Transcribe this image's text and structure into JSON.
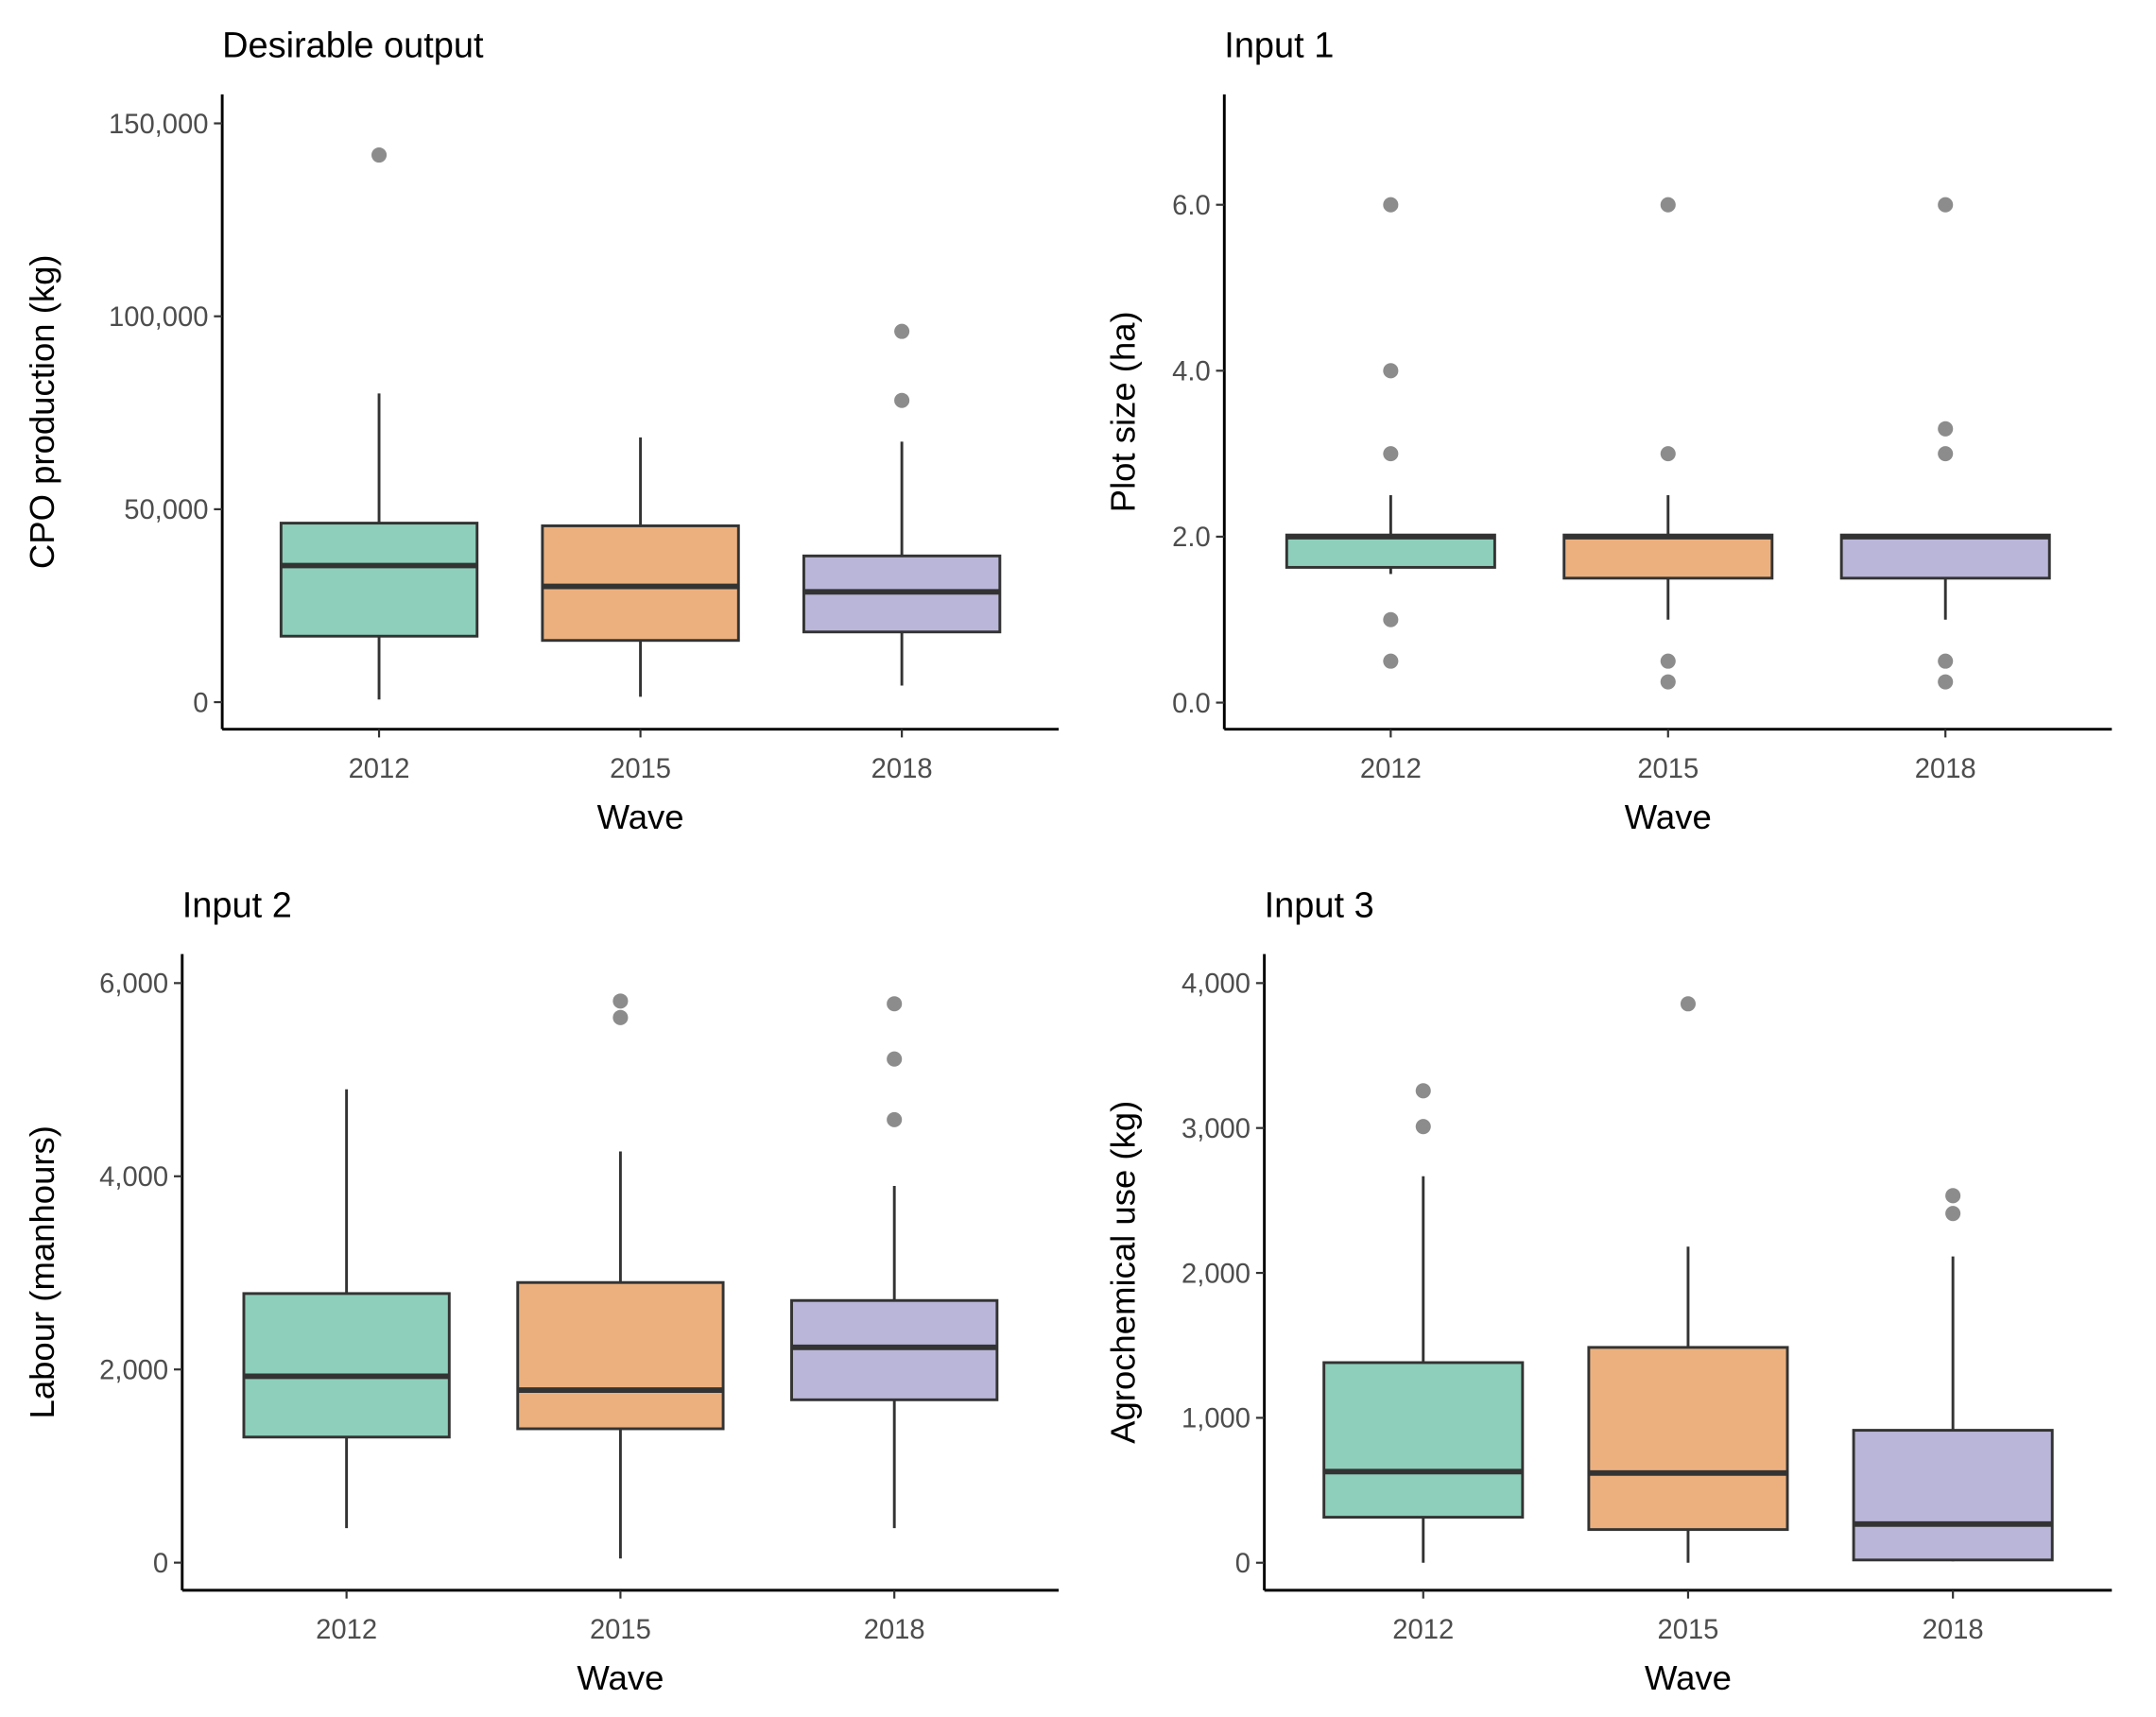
{
  "chart_data": [
    {
      "type": "box",
      "title": "Desirable output",
      "x_label": "Wave",
      "y_label": "CPO production (kg)",
      "categories": [
        "2012",
        "2015",
        "2018"
      ],
      "colors": [
        "#8dcfba",
        "#ecb07e",
        "#bab6d9"
      ],
      "boxes": [
        {
          "whislo": 700,
          "q1": 17100,
          "med": 35400,
          "q3": 46400,
          "whishi": 80000,
          "fliers": [
            141800
          ]
        },
        {
          "whislo": 1400,
          "q1": 16000,
          "med": 30000,
          "q3": 45700,
          "whishi": 68600,
          "fliers": []
        },
        {
          "whislo": 4300,
          "q1": 18200,
          "med": 28600,
          "q3": 37900,
          "whishi": 67500,
          "fliers": [
            78200,
            96100
          ]
        }
      ],
      "ylim": [
        -7000,
        157500
      ],
      "yticks": [
        0,
        {
          "value": 50000,
          "label": "50,000"
        },
        {
          "value": 100000,
          "label": "100,000"
        },
        {
          "value": 150000,
          "label": "150,000"
        }
      ]
    },
    {
      "type": "box",
      "title": "Input 1",
      "x_label": "Wave",
      "y_label": "Plot size (ha)",
      "categories": [
        "2012",
        "2015",
        "2018"
      ],
      "colors": [
        "#8dcfba",
        "#ecb07e",
        "#bab6d9"
      ],
      "boxes": [
        {
          "whislo": 1.55,
          "q1": 1.63,
          "med": 2.0,
          "q3": 2.02,
          "whishi": 2.5,
          "fliers": [
            6,
            4,
            3,
            1,
            0.5
          ]
        },
        {
          "whislo": 1.0,
          "q1": 1.5,
          "med": 2.0,
          "q3": 2.02,
          "whishi": 2.5,
          "fliers": [
            6,
            3,
            0.5,
            0.25
          ]
        },
        {
          "whislo": 1.0,
          "q1": 1.5,
          "med": 2.0,
          "q3": 2.02,
          "whishi": 2.02,
          "fliers": [
            6,
            3.3,
            3,
            0.5,
            0.25
          ]
        }
      ],
      "ylim": [
        -0.32,
        7.33
      ],
      "yticks": [
        {
          "value": 0,
          "label": "0.0"
        },
        {
          "value": 2,
          "label": "2.0"
        },
        {
          "value": 4,
          "label": "4.0"
        },
        {
          "value": 6,
          "label": "6.0"
        }
      ]
    },
    {
      "type": "box",
      "title": "Input 2",
      "x_label": "Wave",
      "y_label": "Labour (manhours)",
      "categories": [
        "2012",
        "2015",
        "2018"
      ],
      "colors": [
        "#8dcfba",
        "#ecb07e",
        "#bab6d9"
      ],
      "boxes": [
        {
          "whislo": 357,
          "q1": 1300,
          "med": 1929,
          "q3": 2786,
          "whishi": 4900,
          "fliers": []
        },
        {
          "whislo": 43,
          "q1": 1386,
          "med": 1786,
          "q3": 2900,
          "whishi": 4257,
          "fliers": [
            5814,
            5643
          ]
        },
        {
          "whislo": 357,
          "q1": 1686,
          "med": 2229,
          "q3": 2714,
          "whishi": 3900,
          "fliers": [
            5786,
            5214,
            4586
          ]
        }
      ],
      "ylim": [
        -286,
        6300
      ],
      "yticks": [
        0,
        {
          "value": 2000,
          "label": "2,000"
        },
        {
          "value": 4000,
          "label": "4,000"
        },
        {
          "value": 6000,
          "label": "6,000"
        }
      ]
    },
    {
      "type": "box",
      "title": "Input 3",
      "x_label": "Wave",
      "y_label": "Agrochemical use (kg)",
      "categories": [
        "2012",
        "2015",
        "2018"
      ],
      "colors": [
        "#8dcfba",
        "#ecb07e",
        "#bab6d9"
      ],
      "boxes": [
        {
          "whislo": 0,
          "q1": 314,
          "med": 629,
          "q3": 1381,
          "whishi": 2667,
          "fliers": [
            3010,
            3257
          ]
        },
        {
          "whislo": 0,
          "q1": 229,
          "med": 619,
          "q3": 1486,
          "whishi": 2181,
          "fliers": [
            3857
          ]
        },
        {
          "whislo": 10,
          "q1": 19,
          "med": 267,
          "q3": 914,
          "whishi": 2114,
          "fliers": [
            2410,
            2533
          ]
        }
      ],
      "ylim": [
        -190,
        4200
      ],
      "yticks": [
        0,
        {
          "value": 1000,
          "label": "1,000"
        },
        {
          "value": 2000,
          "label": "2,000"
        },
        {
          "value": 3000,
          "label": "3,000"
        },
        {
          "value": 4000,
          "label": "4,000"
        }
      ]
    }
  ]
}
